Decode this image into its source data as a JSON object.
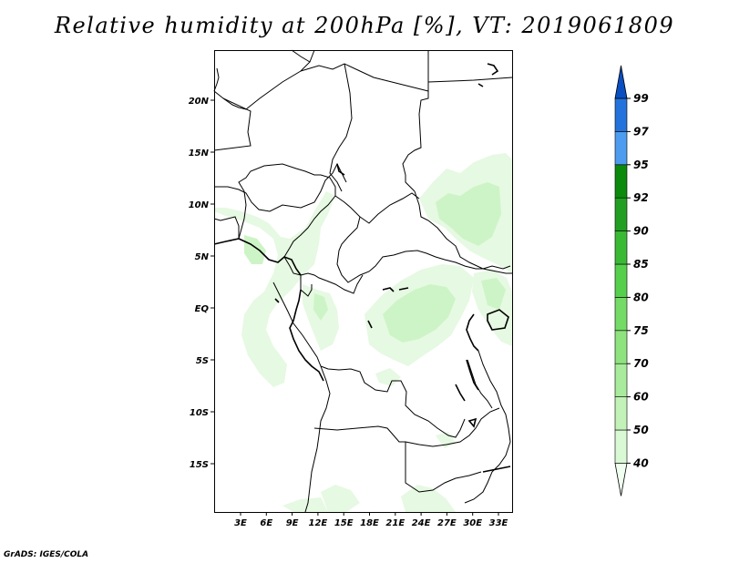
{
  "title": "Relative humidity at 200hPa [%], VT: 2019061809",
  "credit": "GrADS: IGES/COLA",
  "map": {
    "lat_labels": [
      "20N",
      "15N",
      "10N",
      "5N",
      "EQ",
      "5S",
      "10S",
      "15S"
    ],
    "lon_labels": [
      "3E",
      "6E",
      "9E",
      "12E",
      "15E",
      "18E",
      "21E",
      "24E",
      "27E",
      "30E",
      "33E"
    ]
  },
  "colorbar": {
    "levels": [
      "40",
      "50",
      "60",
      "70",
      "75",
      "80",
      "85",
      "90",
      "92",
      "95",
      "97",
      "99"
    ],
    "colors": [
      "#f0fff0",
      "#d9f8d4",
      "#c2f2b8",
      "#a8eb9c",
      "#8fe37f",
      "#74db66",
      "#56d04c",
      "#3ab935",
      "#229f22",
      "#0c8a0c",
      "#4d9cf0",
      "#2473dd",
      "#0a4fc1"
    ]
  }
}
